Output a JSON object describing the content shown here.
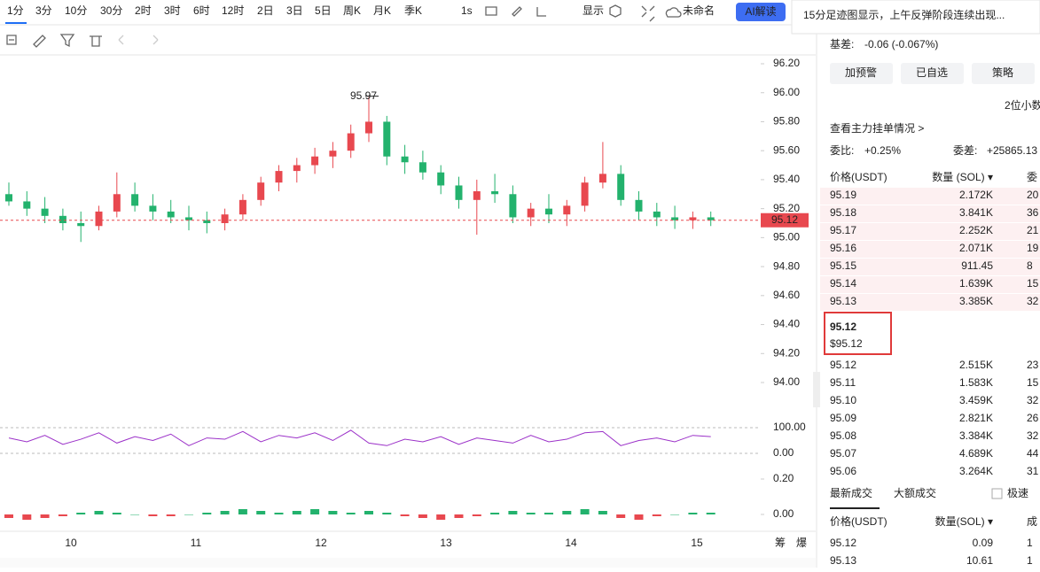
{
  "toolbar": {
    "intervals": [
      "1分",
      "3分",
      "10分",
      "30分",
      "2时",
      "3时",
      "6时",
      "12时",
      "2日",
      "3日",
      "5日",
      "周K",
      "月K",
      "季K"
    ],
    "speed": "1s",
    "display": "显示",
    "layout": "未命名",
    "ai": "AI解读"
  },
  "notification": "15分足迹图显示，上午反弹阶段连续出现...",
  "chart": {
    "type": "candlestick",
    "ylim": [
      94.0,
      96.2
    ],
    "yticks": [
      {
        "value": 96.2,
        "label": "96.20"
      },
      {
        "value": 96.0,
        "label": "96.00"
      },
      {
        "value": 95.8,
        "label": "95.80"
      },
      {
        "value": 95.6,
        "label": "95.60"
      },
      {
        "value": 95.4,
        "label": "95.40"
      },
      {
        "value": 95.2,
        "label": "95.20"
      },
      {
        "value": 95.0,
        "label": "95.00"
      },
      {
        "value": 94.8,
        "label": "94.80"
      },
      {
        "value": 94.6,
        "label": "94.60"
      },
      {
        "value": 94.4,
        "label": "94.40"
      },
      {
        "value": 94.2,
        "label": "94.20"
      },
      {
        "value": 94.0,
        "label": "94.00"
      }
    ],
    "x_labels": [
      "10",
      "11",
      "12",
      "13",
      "14",
      "15"
    ],
    "up_color": "#e8484f",
    "down_color": "#23b26d",
    "last_price": {
      "value": 95.12,
      "label": "95.12"
    },
    "high_marker": {
      "value": 95.97,
      "label": "95.97"
    },
    "candles": [
      [
        95.3,
        95.38,
        95.22,
        95.25
      ],
      [
        95.25,
        95.32,
        95.15,
        95.2
      ],
      [
        95.2,
        95.28,
        95.1,
        95.15
      ],
      [
        95.15,
        95.2,
        95.05,
        95.1
      ],
      [
        95.1,
        95.18,
        94.97,
        95.08
      ],
      [
        95.08,
        95.22,
        95.05,
        95.18
      ],
      [
        95.18,
        95.45,
        95.14,
        95.3
      ],
      [
        95.3,
        95.38,
        95.18,
        95.22
      ],
      [
        95.22,
        95.3,
        95.12,
        95.18
      ],
      [
        95.18,
        95.26,
        95.1,
        95.14
      ],
      [
        95.14,
        95.22,
        95.05,
        95.12
      ],
      [
        95.12,
        95.18,
        95.03,
        95.1
      ],
      [
        95.1,
        95.2,
        95.05,
        95.16
      ],
      [
        95.16,
        95.3,
        95.12,
        95.26
      ],
      [
        95.26,
        95.42,
        95.22,
        95.38
      ],
      [
        95.38,
        95.5,
        95.32,
        95.46
      ],
      [
        95.46,
        95.55,
        95.38,
        95.5
      ],
      [
        95.5,
        95.62,
        95.44,
        95.56
      ],
      [
        95.56,
        95.66,
        95.48,
        95.6
      ],
      [
        95.6,
        95.78,
        95.55,
        95.72
      ],
      [
        95.72,
        95.97,
        95.66,
        95.8
      ],
      [
        95.8,
        95.84,
        95.5,
        95.56
      ],
      [
        95.56,
        95.64,
        95.44,
        95.52
      ],
      [
        95.52,
        95.6,
        95.4,
        95.45
      ],
      [
        95.45,
        95.5,
        95.3,
        95.36
      ],
      [
        95.36,
        95.42,
        95.2,
        95.26
      ],
      [
        95.26,
        95.4,
        95.02,
        95.32
      ],
      [
        95.32,
        95.44,
        95.24,
        95.3
      ],
      [
        95.3,
        95.36,
        95.1,
        95.14
      ],
      [
        95.14,
        95.24,
        95.08,
        95.2
      ],
      [
        95.2,
        95.3,
        95.1,
        95.16
      ],
      [
        95.16,
        95.26,
        95.08,
        95.22
      ],
      [
        95.22,
        95.42,
        95.18,
        95.38
      ],
      [
        95.38,
        95.66,
        95.34,
        95.44
      ],
      [
        95.44,
        95.5,
        95.22,
        95.26
      ],
      [
        95.26,
        95.32,
        95.12,
        95.18
      ],
      [
        95.18,
        95.24,
        95.08,
        95.14
      ],
      [
        95.14,
        95.22,
        95.06,
        95.12
      ],
      [
        95.12,
        95.18,
        95.06,
        95.14
      ],
      [
        95.14,
        95.18,
        95.08,
        95.12
      ]
    ],
    "rsi": {
      "ylim": [
        0,
        100
      ],
      "yticks": [
        {
          "value": 100,
          "label": "100.00"
        },
        {
          "value": 0,
          "label": "0.00"
        }
      ],
      "color": "#9b30c8",
      "values": [
        60,
        45,
        70,
        35,
        55,
        80,
        40,
        65,
        50,
        75,
        30,
        60,
        55,
        85,
        45,
        70,
        60,
        80,
        50,
        90,
        40,
        30,
        55,
        45,
        65,
        35,
        60,
        50,
        40,
        70,
        45,
        55,
        80,
        85,
        30,
        50,
        60,
        45,
        70,
        65
      ]
    },
    "macd": {
      "ylim": [
        -0.1,
        0.2
      ],
      "yticks": [
        {
          "value": 0.2,
          "label": "0.20"
        },
        {
          "value": 0,
          "label": "0.00"
        }
      ],
      "values": [
        -0.02,
        -0.03,
        -0.02,
        -0.01,
        0.01,
        0.02,
        0.01,
        0.0,
        -0.01,
        -0.01,
        0.0,
        0.01,
        0.02,
        0.03,
        0.02,
        0.01,
        0.02,
        0.03,
        0.02,
        0.01,
        0.02,
        0.01,
        -0.01,
        -0.02,
        -0.03,
        -0.02,
        -0.01,
        0.01,
        0.02,
        0.01,
        0.01,
        0.02,
        0.03,
        0.02,
        -0.02,
        -0.03,
        -0.01,
        0.0,
        0.01,
        0.01
      ]
    },
    "footer": [
      "筹",
      "爆"
    ]
  },
  "panel": {
    "basis_label": "基差:",
    "basis_value": "-0.06 (-0.067%)",
    "buttons": [
      "加预警",
      "已自选",
      "策略"
    ],
    "decimals": "2位小数",
    "orders_link": "查看主力挂单情况 >",
    "ratio_label": "委比:",
    "ratio_value": "+0.25%",
    "diff_label": "委差:",
    "diff_value": "+25865.13",
    "book_headers": [
      "价格(USDT)",
      "数量 (SOL) ▾",
      "委"
    ],
    "asks": [
      [
        "95.19",
        "2.172K",
        "20"
      ],
      [
        "95.18",
        "3.841K",
        "36"
      ],
      [
        "95.17",
        "2.252K",
        "21"
      ],
      [
        "95.16",
        "2.071K",
        "19"
      ],
      [
        "95.15",
        "911.45",
        "8"
      ],
      [
        "95.14",
        "1.639K",
        "15"
      ],
      [
        "95.13",
        "3.385K",
        "32"
      ]
    ],
    "current": "95.12",
    "current_usd": "$95.12",
    "bids": [
      [
        "95.12",
        "2.515K",
        "23"
      ],
      [
        "95.11",
        "1.583K",
        "15"
      ],
      [
        "95.10",
        "3.459K",
        "32"
      ],
      [
        "95.09",
        "2.821K",
        "26"
      ],
      [
        "95.08",
        "3.384K",
        "32"
      ],
      [
        "95.07",
        "4.689K",
        "44"
      ],
      [
        "95.06",
        "3.264K",
        "31"
      ]
    ],
    "tabs": [
      "最新成交",
      "大额成交"
    ],
    "fast": "极速",
    "trade_headers": [
      "价格(USDT)",
      "数量(SOL) ▾",
      "成"
    ],
    "trades": [
      [
        "95.12",
        "0.09",
        "1"
      ],
      [
        "95.13",
        "10.61",
        "1"
      ]
    ]
  }
}
